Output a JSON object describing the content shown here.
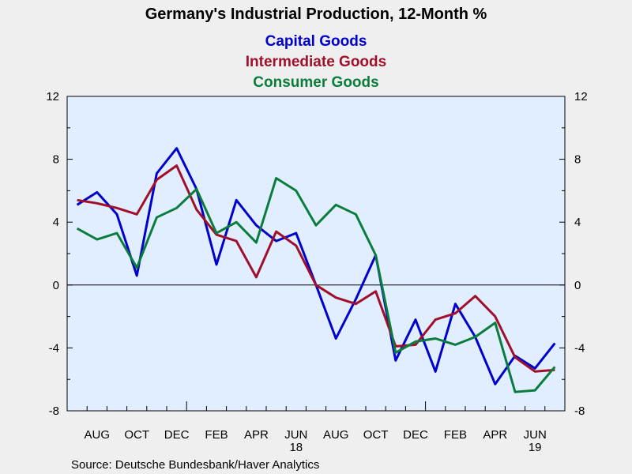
{
  "chart_data": {
    "type": "line",
    "title": "Germany's Industrial Production, 12-Month %",
    "source": "Source:  Deutsche Bundesbank/Haver Analytics",
    "ylim": [
      -8,
      12
    ],
    "yticks": [
      "12",
      "8",
      "4",
      "0",
      "-4",
      "-8"
    ],
    "grid": false,
    "zero_line": true,
    "legend_placement": "top-center",
    "x_tick_labels": [
      "AUG",
      "OCT",
      "DEC",
      "FEB",
      "APR",
      "JUN",
      "AUG",
      "OCT",
      "DEC",
      "FEB",
      "APR",
      "JUN"
    ],
    "x_year_labels": [
      {
        "label": "18",
        "under": "JUN"
      },
      {
        "label": "19",
        "under": "JUN"
      }
    ],
    "x": [
      "2017-07",
      "2017-08",
      "2017-09",
      "2017-10",
      "2017-11",
      "2017-12",
      "2018-01",
      "2018-02",
      "2018-03",
      "2018-04",
      "2018-05",
      "2018-06",
      "2018-07",
      "2018-08",
      "2018-09",
      "2018-10",
      "2018-11",
      "2018-12",
      "2019-01",
      "2019-02",
      "2019-03",
      "2019-04",
      "2019-05",
      "2019-06",
      "2019-07"
    ],
    "series": [
      {
        "name": "Capital Goods",
        "color": "#0000cc",
        "values": [
          5.1,
          5.9,
          4.5,
          0.6,
          7.1,
          8.7,
          6.1,
          1.3,
          5.4,
          3.8,
          2.8,
          3.3,
          0.0,
          -3.4,
          -0.9,
          1.9,
          -4.8,
          -2.2,
          -5.5,
          -1.2,
          -3.3,
          -6.3,
          -4.5,
          -5.3,
          -3.7
        ]
      },
      {
        "name": "Intermediate Goods",
        "color": "#a0102a",
        "values": [
          5.4,
          5.2,
          4.9,
          4.5,
          6.7,
          7.6,
          4.8,
          3.2,
          2.8,
          0.5,
          3.4,
          2.5,
          0.0,
          -0.8,
          -1.2,
          -0.4,
          -3.9,
          -3.8,
          -2.2,
          -1.8,
          -0.7,
          -2.0,
          -4.6,
          -5.5,
          -5.4
        ]
      },
      {
        "name": "Consumer Goods",
        "color": "#0a7d3d",
        "values": [
          3.6,
          2.9,
          3.3,
          1.1,
          4.3,
          4.9,
          6.1,
          3.3,
          4.0,
          2.7,
          6.8,
          6.0,
          3.8,
          5.1,
          4.5,
          1.9,
          -4.3,
          -3.6,
          -3.4,
          -3.8,
          -3.3,
          -2.4,
          -6.8,
          -6.7,
          -5.2
        ]
      }
    ]
  }
}
